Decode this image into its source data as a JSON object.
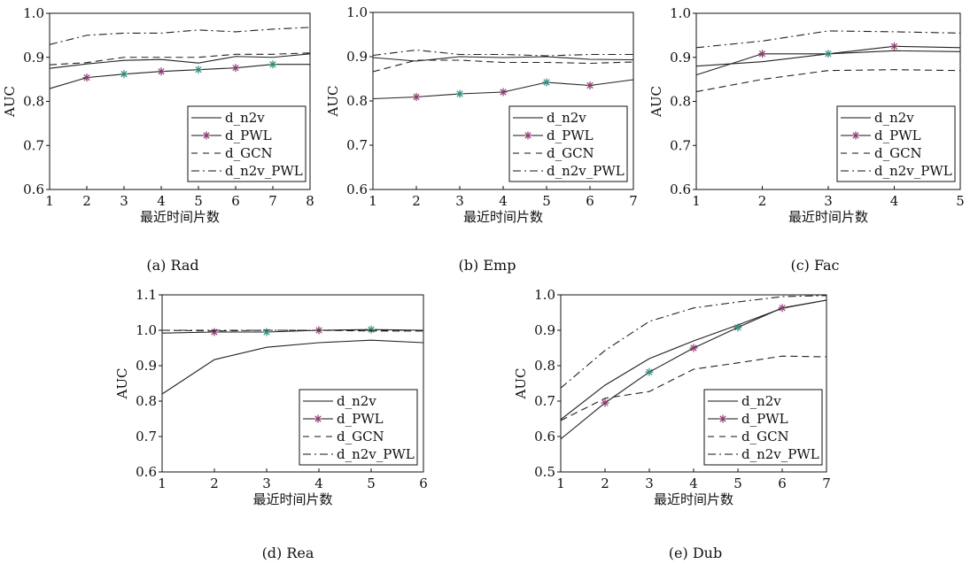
{
  "chart_data": [
    {
      "type": "line",
      "caption": "(a) Rad",
      "xlabel": "最近时间片数",
      "ylabel": "AUC",
      "x": [
        1,
        2,
        3,
        4,
        5,
        6,
        7,
        8
      ],
      "xlim": [
        1,
        8
      ],
      "ylim": [
        0.6,
        1.0
      ],
      "yticks": [
        "0.6",
        "0.7",
        "0.8",
        "0.9",
        "1.0"
      ],
      "xticks": [
        "1",
        "2",
        "3",
        "4",
        "5",
        "6",
        "7",
        "8"
      ],
      "legend_position": "bottom-right",
      "series": [
        {
          "name": "d_n2v",
          "style": "solid",
          "values": [
            0.875,
            0.885,
            0.893,
            0.895,
            0.887,
            0.902,
            0.9,
            0.908
          ]
        },
        {
          "name": "d_PWL",
          "style": "star",
          "values": [
            0.829,
            0.854,
            0.862,
            0.868,
            0.872,
            0.876,
            0.884,
            0.884
          ]
        },
        {
          "name": "d_GCN",
          "style": "dashed",
          "values": [
            0.883,
            0.888,
            0.9,
            0.9,
            0.9,
            0.907,
            0.907,
            0.91
          ]
        },
        {
          "name": "d_n2v_PWL",
          "style": "dashdot",
          "values": [
            0.929,
            0.95,
            0.955,
            0.955,
            0.962,
            0.958,
            0.964,
            0.968
          ]
        }
      ]
    },
    {
      "type": "line",
      "caption": "(b) Emp",
      "xlabel": "最近时间片数",
      "ylabel": "AUC",
      "x": [
        1,
        2,
        3,
        4,
        5,
        6,
        7
      ],
      "xlim": [
        1,
        7
      ],
      "ylim": [
        0.6,
        1.0
      ],
      "yticks": [
        "0.6",
        "0.7",
        "0.8",
        "0.9",
        "1.0"
      ],
      "xticks": [
        "1",
        "2",
        "3",
        "4",
        "5",
        "6",
        "7"
      ],
      "legend_position": "bottom-right",
      "series": [
        {
          "name": "d_n2v",
          "style": "solid",
          "values": [
            0.898,
            0.89,
            0.9,
            0.898,
            0.9,
            0.894,
            0.893
          ]
        },
        {
          "name": "d_PWL",
          "style": "star",
          "values": [
            0.805,
            0.809,
            0.816,
            0.82,
            0.842,
            0.835,
            0.848
          ]
        },
        {
          "name": "d_GCN",
          "style": "dashed",
          "values": [
            0.866,
            0.892,
            0.892,
            0.887,
            0.887,
            0.885,
            0.888
          ]
        },
        {
          "name": "d_n2v_PWL",
          "style": "dashdot",
          "values": [
            0.903,
            0.915,
            0.905,
            0.905,
            0.902,
            0.905,
            0.905
          ]
        }
      ]
    },
    {
      "type": "line",
      "caption": "(c) Fac",
      "xlabel": "最近时间片数",
      "ylabel": "AUC",
      "x": [
        1,
        2,
        3,
        4,
        5
      ],
      "xlim": [
        1,
        5
      ],
      "ylim": [
        0.6,
        1.0
      ],
      "yticks": [
        "0.6",
        "0.7",
        "0.8",
        "0.9",
        "1.0"
      ],
      "xticks": [
        "1",
        "2",
        "3",
        "4",
        "5"
      ],
      "legend_position": "bottom-right",
      "series": [
        {
          "name": "d_n2v",
          "style": "solid",
          "values": [
            0.88,
            0.89,
            0.908,
            0.915,
            0.913
          ]
        },
        {
          "name": "d_PWL",
          "style": "star",
          "values": [
            0.86,
            0.908,
            0.908,
            0.925,
            0.922
          ]
        },
        {
          "name": "d_GCN",
          "style": "dashed",
          "values": [
            0.822,
            0.85,
            0.87,
            0.872,
            0.87
          ]
        },
        {
          "name": "d_n2v_PWL",
          "style": "dashdot",
          "values": [
            0.922,
            0.937,
            0.96,
            0.958,
            0.955
          ]
        }
      ]
    },
    {
      "type": "line",
      "caption": "(d) Rea",
      "xlabel": "最近时间片数",
      "ylabel": "AUC",
      "x": [
        1,
        2,
        3,
        4,
        5,
        6
      ],
      "xlim": [
        1,
        6
      ],
      "ylim": [
        0.6,
        1.1
      ],
      "yticks": [
        "0.6",
        "0.7",
        "0.8",
        "0.9",
        "1.0",
        "1.1"
      ],
      "xticks": [
        "1",
        "2",
        "3",
        "4",
        "5",
        "6"
      ],
      "legend_position": "bottom-right",
      "series": [
        {
          "name": "d_n2v",
          "style": "solid",
          "values": [
            0.82,
            0.917,
            0.952,
            0.965,
            0.972,
            0.965
          ]
        },
        {
          "name": "d_PWL",
          "style": "star",
          "values": [
            0.992,
            0.995,
            0.995,
            1.0,
            1.002,
            1.0
          ]
        },
        {
          "name": "d_GCN",
          "style": "dashed",
          "values": [
            1.0,
            0.998,
            1.0,
            1.0,
            0.998,
            0.998
          ]
        },
        {
          "name": "d_n2v_PWL",
          "style": "dashdot",
          "values": [
            1.0,
            1.0,
            1.0,
            1.0,
            1.0,
            1.0
          ]
        }
      ]
    },
    {
      "type": "line",
      "caption": "(e) Dub",
      "xlabel": "最近时间片数",
      "ylabel": "AUC",
      "x": [
        1,
        2,
        3,
        4,
        5,
        6,
        7
      ],
      "xlim": [
        1,
        7
      ],
      "ylim": [
        0.5,
        1.0
      ],
      "yticks": [
        "0.5",
        "0.6",
        "0.7",
        "0.8",
        "0.9",
        "1.0"
      ],
      "xticks": [
        "1",
        "2",
        "3",
        "4",
        "5",
        "6",
        "7"
      ],
      "legend_position": "bottom-right",
      "series": [
        {
          "name": "d_n2v",
          "style": "solid",
          "values": [
            0.648,
            0.745,
            0.82,
            0.87,
            0.915,
            0.962,
            0.985
          ]
        },
        {
          "name": "d_PWL",
          "style": "star",
          "values": [
            0.593,
            0.695,
            0.782,
            0.85,
            0.908,
            0.963,
            0.985
          ]
        },
        {
          "name": "d_GCN",
          "style": "dashed",
          "values": [
            0.645,
            0.708,
            0.727,
            0.79,
            0.808,
            0.827,
            0.825
          ]
        },
        {
          "name": "d_n2v_PWL",
          "style": "dashdot",
          "values": [
            0.737,
            0.843,
            0.925,
            0.963,
            0.98,
            0.995,
            0.998
          ]
        }
      ]
    }
  ],
  "colors": {
    "line": "#222222",
    "marker": "#8a3a6e",
    "marker_alt": "#2f8a7a"
  }
}
